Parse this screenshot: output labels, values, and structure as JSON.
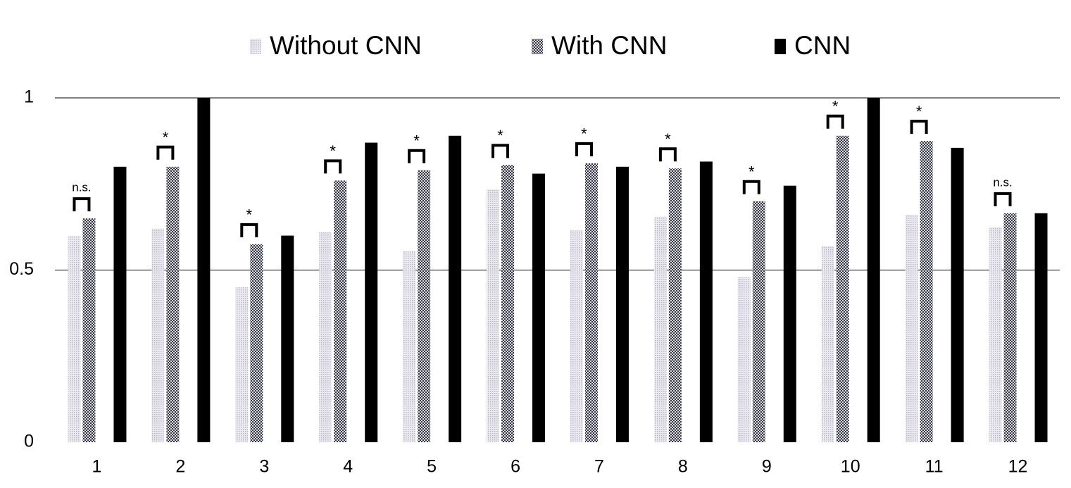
{
  "chart_data": {
    "type": "bar",
    "categories": [
      "1",
      "2",
      "3",
      "4",
      "5",
      "6",
      "7",
      "8",
      "9",
      "10",
      "11",
      "12"
    ],
    "series": [
      {
        "name": "Without CNN",
        "color": "#c8c8d2",
        "pattern": "dots",
        "values": [
          0.6,
          0.62,
          0.45,
          0.61,
          0.555,
          0.735,
          0.615,
          0.655,
          0.48,
          0.57,
          0.66,
          0.625
        ]
      },
      {
        "name": "With CNN",
        "color": "#4a4a55",
        "pattern": "checker",
        "values": [
          0.65,
          0.8,
          0.575,
          0.76,
          0.79,
          0.805,
          0.81,
          0.795,
          0.7,
          0.89,
          0.875,
          0.665
        ]
      },
      {
        "name": "CNN",
        "color": "#000000",
        "pattern": "solid",
        "values": [
          0.8,
          1.0,
          0.6,
          0.87,
          0.89,
          0.78,
          0.8,
          0.815,
          0.745,
          1.0,
          0.855,
          0.665
        ]
      }
    ],
    "annotations": [
      "n.s.",
      "*",
      "*",
      "*",
      "*",
      "*",
      "*",
      "*",
      "*",
      "*",
      "*",
      "n.s."
    ],
    "ylim": [
      0,
      1
    ],
    "yticks": [
      0,
      0.5,
      1
    ],
    "grid": true
  }
}
